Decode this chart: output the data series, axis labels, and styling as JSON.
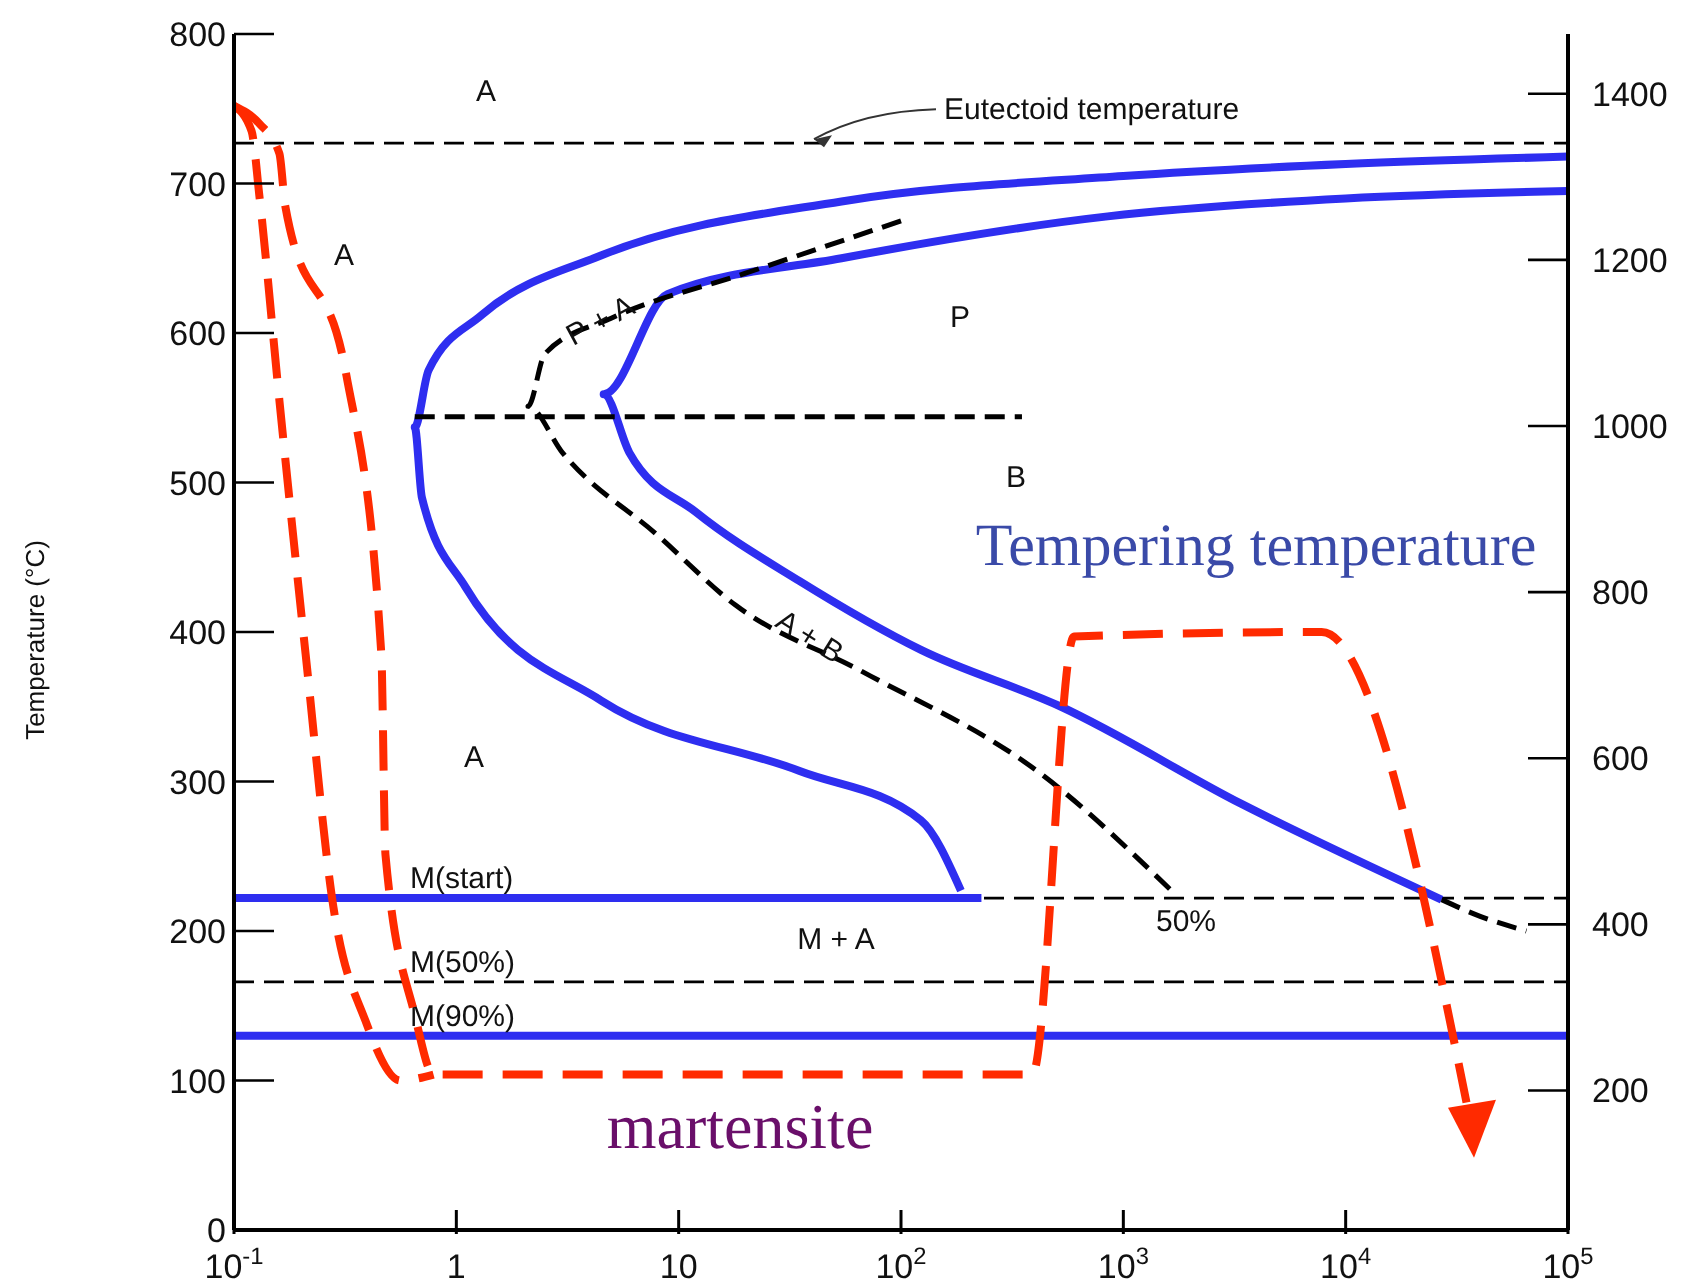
{
  "chart_data": {
    "type": "line",
    "ylabel": "Temperature (°C)",
    "xlim": [
      0.1,
      100000
    ],
    "log": "x",
    "xticks": [
      {
        "value": 0.1,
        "label": "10$^{-1}$"
      },
      1,
      10,
      {
        "value": 100,
        "label": "10$^{2}$"
      },
      {
        "value": 1000,
        "label": "10$^{3}$"
      },
      {
        "value": 10000,
        "label": "10$^{4}$"
      },
      {
        "value": 100000,
        "label": "10$^{5}$"
      }
    ],
    "ylim": [
      0,
      800
    ],
    "yticks": [
      0,
      100,
      200,
      300,
      400,
      500,
      600,
      700,
      800
    ],
    "y2lim": [
      32,
      1472
    ],
    "y2ticks": [
      200,
      400,
      600,
      800,
      1000,
      1200,
      1400
    ],
    "marker": "none",
    "series": [
      {
        "color": "#2e2ef0",
        "line_style": "solid",
        "x": [
          100000,
          10000,
          1000,
          54,
          4.5,
          1.3,
          0.75,
          0.65,
          0.7,
          1.1,
          4.5,
          35,
          123,
          186
        ],
        "values": [
          718,
          713,
          705,
          688,
          652,
          612,
          575,
          537,
          490,
          430,
          354,
          307,
          274,
          227
        ]
      },
      {
        "color": "#2e2ef0",
        "line_style": "solid",
        "x": [
          0.1,
          230
        ],
        "values": [
          222,
          222
        ]
      },
      {
        "color": "#2e2ef0",
        "line_style": "solid",
        "x": [
          100000,
          10000,
          850,
          54,
          8.9,
          4.6,
          6,
          12,
          35,
          123,
          525,
          3400,
          27000
        ],
        "values": [
          695,
          690,
          678,
          650,
          626,
          559,
          520,
          480,
          434,
          388,
          350,
          285,
          221
        ]
      },
      {
        "color": "#000000",
        "line_style": "dashed",
        "x": [
          100,
          20,
          5,
          2.5,
          2.1,
          3,
          8,
          18,
          66,
          427,
          1700
        ],
        "values": [
          675,
          640,
          610,
          586,
          551,
          520,
          465,
          418,
          374,
          305,
          225
        ]
      },
      {
        "color": "#000000",
        "line_style": "dashed",
        "x": [
          27000,
          40000,
          65000
        ],
        "values": [
          221,
          210,
          200
        ]
      },
      {
        "color": "#000000",
        "line_style": "dashed",
        "x": [
          0.65,
          350
        ],
        "values": [
          544,
          544
        ]
      },
      {
        "color": "#ff2a00",
        "line_style": "dashed",
        "x": [
          0.1,
          0.13,
          0.16,
          0.17,
          0.32,
          0.46,
          0.48,
          0.65,
          0.79,
          390,
          600,
          7800,
          37000
        ],
        "values": [
          752,
          740,
          720,
          685,
          572,
          385,
          251,
          144,
          104,
          104,
          397,
          400,
          67
        ]
      },
      {
        "color": "#ff2a00",
        "line_style": "dashed",
        "x": [
          0.1,
          0.12,
          0.13,
          0.16,
          0.21,
          0.28,
          0.39,
          0.56,
          0.79
        ],
        "values": [
          752,
          735,
          692,
          555,
          385,
          216,
          140,
          100,
          104
        ]
      }
    ],
    "ref_lines": [
      {
        "axis": "y",
        "value": 727,
        "label": "Eutectoid temperature",
        "color": "#000000",
        "line_style": "dashed"
      },
      {
        "axis": "y",
        "value": 222,
        "label": "M(start)",
        "color": "#000000",
        "line_style": "dashed"
      },
      {
        "axis": "y",
        "value": 166,
        "label": "M(50%)",
        "color": "#000000",
        "line_style": "dashed"
      },
      {
        "axis": "y",
        "value": 130,
        "label": "M(90%)",
        "color": "#2e2ef0",
        "line_style": "solid"
      }
    ],
    "annotations": [
      "Tempering temperature",
      "martensite",
      "A",
      "A",
      "P + A",
      "P",
      "B",
      "A + B",
      "A",
      "M + A",
      "50%"
    ]
  }
}
